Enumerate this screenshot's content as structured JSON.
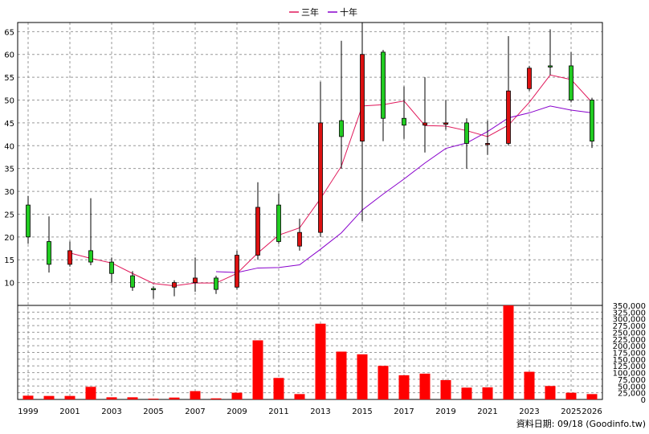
{
  "chart_data": [
    {
      "type": "candlestick",
      "legend": {
        "placement": "top-center",
        "entries": [
          {
            "name": "三年",
            "color": "#e0185a"
          },
          {
            "name": "十年",
            "color": "#8800cc"
          }
        ]
      },
      "ylim": [
        5,
        67
      ],
      "yticks": [
        10,
        15,
        20,
        25,
        30,
        35,
        40,
        45,
        50,
        55,
        60,
        65
      ],
      "grid": true,
      "up_color": "#22cc22",
      "down_color": "#dd1111",
      "candles": [
        {
          "year": 1999,
          "open": 20,
          "close": 27,
          "high": 29,
          "low": 18.5
        },
        {
          "year": 2000,
          "open": 14,
          "close": 19,
          "high": 24.5,
          "low": 12.2
        },
        {
          "year": 2001,
          "open": 17,
          "close": 14,
          "high": 19,
          "low": 13.5
        },
        {
          "year": 2002,
          "open": 14.5,
          "close": 17,
          "high": 28.5,
          "low": 13.8
        },
        {
          "year": 2003,
          "open": 12,
          "close": 14.5,
          "high": 15.5,
          "low": 10
        },
        {
          "year": 2004,
          "open": 9,
          "close": 11.5,
          "high": 12.5,
          "low": 8.2
        },
        {
          "year": 2005,
          "open": 8.7,
          "close": 8.7,
          "high": 9.2,
          "low": 6.5
        },
        {
          "year": 2006,
          "open": 10,
          "close": 9,
          "high": 10.5,
          "low": 7
        },
        {
          "year": 2007,
          "open": 11,
          "close": 10,
          "high": 15.5,
          "low": 8
        },
        {
          "year": 2008,
          "open": 8.5,
          "close": 11,
          "high": 11.5,
          "low": 7.5
        },
        {
          "year": 2009,
          "open": 16,
          "close": 9,
          "high": 17,
          "low": 8.5
        },
        {
          "year": 2010,
          "open": 26.5,
          "close": 16,
          "high": 32,
          "low": 15
        },
        {
          "year": 2011,
          "open": 19,
          "close": 27,
          "high": 29.5,
          "low": 18.5
        },
        {
          "year": 2012,
          "open": 21,
          "close": 18,
          "high": 24,
          "low": 17
        },
        {
          "year": 2013,
          "open": 45,
          "close": 21,
          "high": 54,
          "low": 20
        },
        {
          "year": 2014,
          "open": 42,
          "close": 45.5,
          "high": 63,
          "low": 35
        },
        {
          "year": 2015,
          "open": 60,
          "close": 41,
          "high": 67,
          "low": 23.5
        },
        {
          "year": 2016,
          "open": 46,
          "close": 60.5,
          "high": 61,
          "low": 41
        },
        {
          "year": 2017,
          "open": 44.5,
          "close": 46,
          "high": 53,
          "low": 41.5
        },
        {
          "year": 2018,
          "open": 45,
          "close": 44.5,
          "high": 55,
          "low": 38.5
        },
        {
          "year": 2019,
          "open": 45,
          "close": 44.7,
          "high": 50,
          "low": 43.5
        },
        {
          "year": 2020,
          "open": 40.5,
          "close": 45,
          "high": 46,
          "low": 35
        },
        {
          "year": 2021,
          "open": 40.5,
          "close": 40.3,
          "high": 45.5,
          "low": 38
        },
        {
          "year": 2022,
          "open": 52,
          "close": 40.5,
          "high": 64,
          "low": 40
        },
        {
          "year": 2023,
          "open": 57,
          "close": 52.5,
          "high": 57.5,
          "low": 52
        },
        {
          "year": 2024,
          "open": 57.5,
          "close": 57.5,
          "high": 65.5,
          "low": 55.5
        },
        {
          "year": 2025,
          "open": 50,
          "close": 57.5,
          "high": 60.5,
          "low": 49.5
        },
        {
          "year": 2026,
          "open": 41,
          "close": 50,
          "high": 50.5,
          "low": 39.5
        }
      ],
      "series": [
        {
          "name": "三年",
          "color": "#e0185a",
          "x": [
            2001,
            2002,
            2003,
            2004,
            2005,
            2006,
            2007,
            2008,
            2009,
            2010,
            2011,
            2012,
            2013,
            2014,
            2015,
            2016,
            2017,
            2018,
            2019,
            2020,
            2021,
            2022,
            2023,
            2024,
            2025,
            2026
          ],
          "values": [
            16.5,
            15.3,
            14.3,
            12.0,
            9.8,
            9.3,
            9.9,
            9.9,
            12.0,
            16.5,
            20.4,
            22.0,
            28.4,
            35.5,
            48.7,
            49.0,
            49.8,
            44.4,
            44.3,
            43.3,
            42.0,
            44.5,
            49.5,
            55.5,
            54.5,
            49.5
          ]
        },
        {
          "name": "十年",
          "color": "#8800cc",
          "x": [
            2008,
            2009,
            2010,
            2011,
            2012,
            2013,
            2014,
            2015,
            2016,
            2017,
            2018,
            2019,
            2020,
            2021,
            2022,
            2023,
            2024,
            2025,
            2026
          ],
          "values": [
            12.4,
            12.2,
            13.2,
            13.3,
            13.9,
            17.3,
            20.9,
            25.9,
            29.4,
            32.7,
            36.2,
            39.4,
            40.6,
            43.1,
            46.1,
            47.2,
            48.7,
            47.8,
            47.2
          ]
        }
      ]
    },
    {
      "type": "bar",
      "bar_color": "#ff0000",
      "ylim": [
        0,
        350000
      ],
      "yticks": [
        "0",
        "25,000",
        "50,000",
        "75,000",
        "100,000",
        "125,000",
        "150,000",
        "175,000",
        "200,000",
        "225,000",
        "250,000",
        "275,000",
        "300,000",
        "325,000",
        "350,000"
      ],
      "x": [
        1999,
        2000,
        2001,
        2002,
        2003,
        2004,
        2005,
        2006,
        2007,
        2008,
        2009,
        2010,
        2011,
        2012,
        2013,
        2014,
        2015,
        2016,
        2017,
        2018,
        2019,
        2020,
        2021,
        2022,
        2023,
        2024,
        2025,
        2026
      ],
      "values": [
        14000,
        13000,
        13000,
        47000,
        8000,
        8000,
        3000,
        7000,
        31000,
        4000,
        25000,
        220000,
        80000,
        20000,
        282000,
        178000,
        168000,
        125000,
        90000,
        96000,
        72000,
        44000,
        45000,
        355000,
        103000,
        50000,
        25000,
        20000
      ]
    }
  ],
  "x_axis_labels": [
    "1999",
    "2001",
    "2003",
    "2005",
    "2007",
    "2009",
    "2011",
    "2013",
    "2015",
    "2017",
    "2019",
    "2021",
    "2023",
    "2025",
    "2026"
  ],
  "source_note": "資料日期: 09/18  (Goodinfo.tw)"
}
